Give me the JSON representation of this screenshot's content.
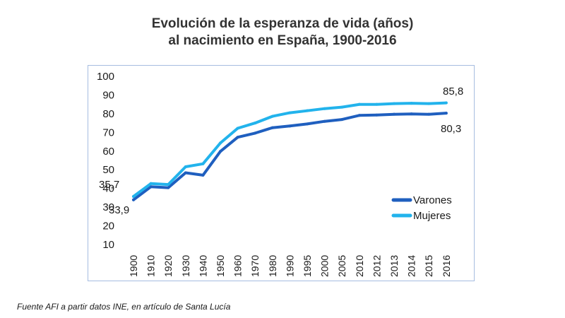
{
  "title_line1": "Evolución de la esperanza de vida (años)",
  "title_line2": "al nacimiento en España, 1900-2016",
  "source": "Fuente AFI a partir datos INE, en artículo de Santa Lucía",
  "chart_data": {
    "type": "line",
    "categories": [
      "1900",
      "1910",
      "1920",
      "1930",
      "1940",
      "1950",
      "1960",
      "1970",
      "1980",
      "1990",
      "1995",
      "2000",
      "2005",
      "2010",
      "2012",
      "2013",
      "2014",
      "2015",
      "2016"
    ],
    "series": [
      {
        "name": "Varones",
        "color": "#1f5fbf",
        "values": [
          33.9,
          40.9,
          40.4,
          48.4,
          47.1,
          59.8,
          67.4,
          69.6,
          72.5,
          73.4,
          74.5,
          75.9,
          76.9,
          79.1,
          79.3,
          79.7,
          79.9,
          79.7,
          80.3
        ]
      },
      {
        "name": "Mujeres",
        "color": "#22b3ec",
        "values": [
          35.7,
          42.6,
          42.1,
          51.6,
          53.2,
          64.3,
          72.2,
          75.0,
          78.6,
          80.5,
          81.6,
          82.7,
          83.5,
          85.0,
          85.0,
          85.4,
          85.6,
          85.4,
          85.8
        ]
      }
    ],
    "yticks": [
      "10",
      "20",
      "30",
      "40",
      "50",
      "60",
      "70",
      "80",
      "90",
      "100"
    ],
    "ylim": [
      10,
      100
    ],
    "annotations": {
      "mujeres_start": "35,7",
      "varones_start": "33,9",
      "mujeres_end": "85,8",
      "varones_end": "80,3"
    },
    "legend_position": "bottom-right",
    "grid": false
  }
}
